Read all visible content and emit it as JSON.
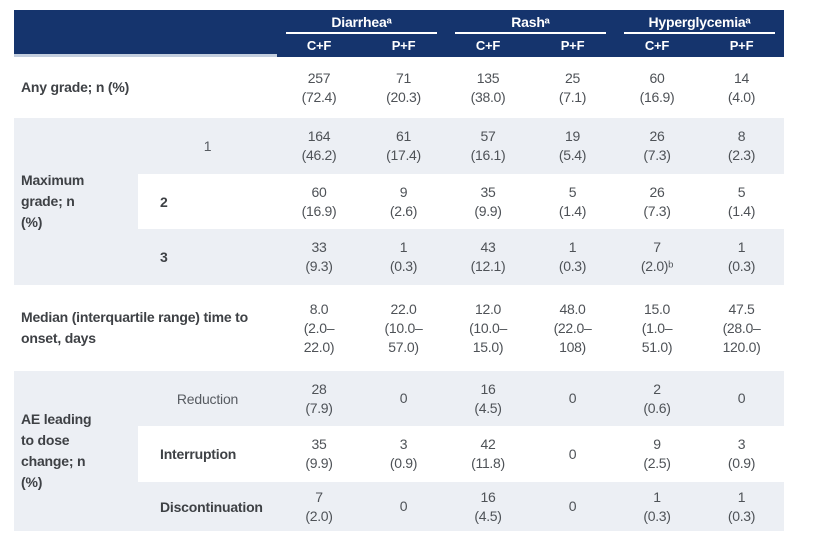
{
  "colors": {
    "header_navy": "#15346D",
    "alt_row_gray": "#ECEFF4",
    "header_text": "#FFFFFF",
    "label_text": "#3E4145",
    "value_text": "#4E5257"
  },
  "header": {
    "groups": [
      {
        "label": "Diarrheaᵃ"
      },
      {
        "label": "Rashᵃ"
      },
      {
        "label": "Hyperglycemiaᵃ"
      }
    ],
    "subcols": [
      "C+F",
      "P+F",
      "C+F",
      "P+F",
      "C+F",
      "P+F"
    ]
  },
  "rows": {
    "any_grade": {
      "label": "Any grade; n (%)",
      "cells": [
        "257\n(72.4)",
        "71\n(20.3)",
        "135\n(38.0)",
        "25\n(7.1)",
        "60\n(16.9)",
        "14\n(4.0)"
      ]
    },
    "max_grade": {
      "label": "Maximum grade; n (%)",
      "sub": [
        {
          "label": "1",
          "cells": [
            "164\n(46.2)",
            "61\n(17.4)",
            "57\n(16.1)",
            "19\n(5.4)",
            "26\n(7.3)",
            "8\n(2.3)"
          ]
        },
        {
          "label": "2",
          "cells": [
            "60\n(16.9)",
            "9\n(2.6)",
            "35\n(9.9)",
            "5\n(1.4)",
            "26\n(7.3)",
            "5\n(1.4)"
          ]
        },
        {
          "label": "3",
          "cells": [
            "33\n(9.3)",
            "1\n(0.3)",
            "43\n(12.1)",
            "1\n(0.3)",
            "7\n(2.0)ᵇ",
            "1\n(0.3)"
          ]
        }
      ]
    },
    "median": {
      "label": "Median (interquartile range) time to onset, days",
      "cells": [
        "8.0\n(2.0–\n22.0)",
        "22.0\n(10.0–\n57.0)",
        "12.0\n(10.0–\n15.0)",
        "48.0\n(22.0–\n108)",
        "15.0\n(1.0–\n51.0)",
        "47.5\n(28.0–\n120.0)"
      ]
    },
    "ae_dose": {
      "label": "AE leading to dose change; n (%)",
      "sub": [
        {
          "label": "Reduction",
          "cells": [
            "28\n(7.9)",
            "0",
            "16\n(4.5)",
            "0",
            "2\n(0.6)",
            "0"
          ]
        },
        {
          "label": "Interruption",
          "cells": [
            "35\n(9.9)",
            "3\n(0.9)",
            "42\n(11.8)",
            "0",
            "9\n(2.5)",
            "3\n(0.9)"
          ]
        },
        {
          "label": "Discontinuation",
          "cells": [
            "7\n(2.0)",
            "0",
            "16\n(4.5)",
            "0",
            "1\n(0.3)",
            "1\n(0.3)"
          ]
        }
      ]
    }
  }
}
